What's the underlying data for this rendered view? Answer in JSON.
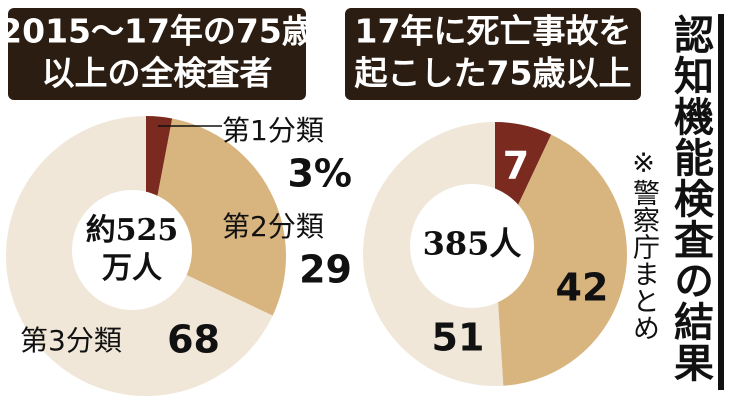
{
  "title": "認知機能検査の結果",
  "source": "※警察庁まとめ",
  "chart_data": [
    {
      "type": "pie",
      "title": [
        "2015～17年の75歳",
        "以上の全検査者"
      ],
      "center_label": [
        "約525",
        "万人"
      ],
      "categories": [
        "第1分類",
        "第2分類",
        "第3分類"
      ],
      "values": [
        3,
        29,
        68
      ],
      "value_labels": [
        "3%",
        "29",
        "68"
      ],
      "colors": [
        "#7b2a1f",
        "#d8b47f",
        "#f0e7d8"
      ]
    },
    {
      "type": "pie",
      "title": [
        "17年に死亡事故を",
        "起こした75歳以上"
      ],
      "center_label": [
        "385人"
      ],
      "values": [
        7,
        42,
        51
      ],
      "value_labels": [
        "7",
        "42",
        "51"
      ],
      "colors": [
        "#7b2a1f",
        "#d8b47f",
        "#f0e7d8"
      ]
    }
  ]
}
